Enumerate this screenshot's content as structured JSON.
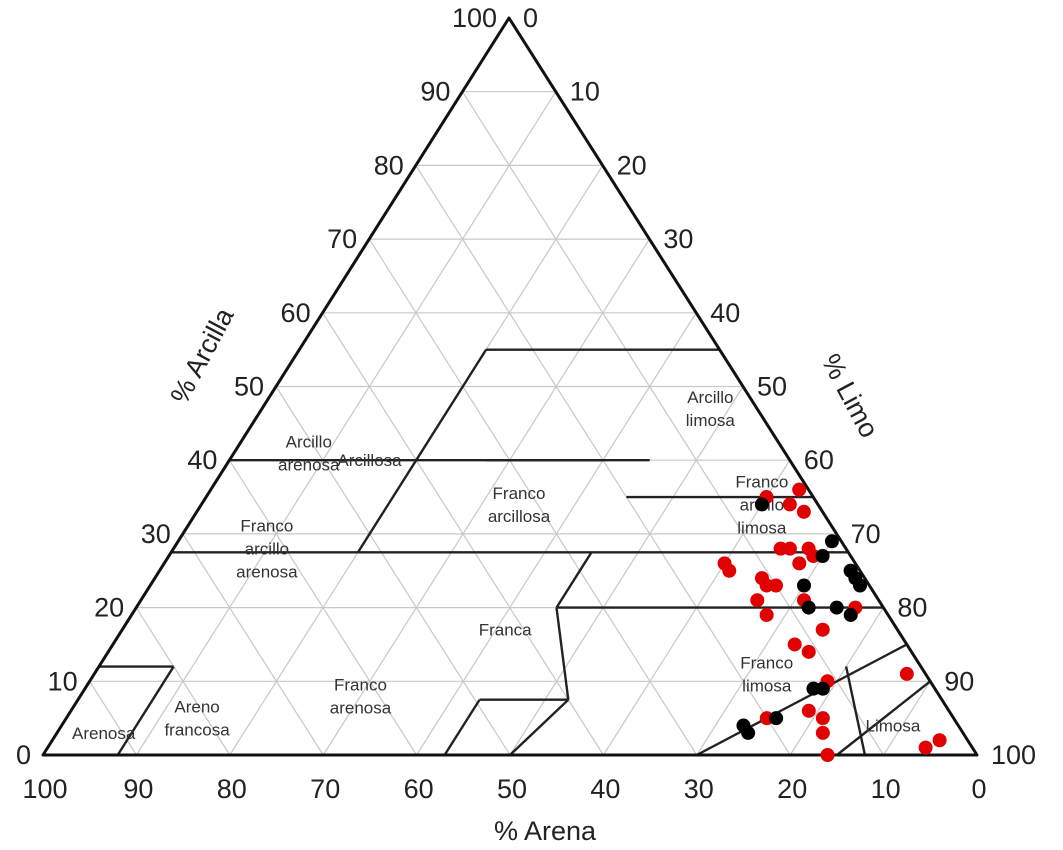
{
  "chart_data": {
    "type": "scatter",
    "subtype": "ternary",
    "axes": {
      "clay": {
        "label": "% Arcilla",
        "ticks": [
          "0",
          "10",
          "20",
          "30",
          "40",
          "50",
          "60",
          "70",
          "80",
          "90",
          "100"
        ]
      },
      "silt": {
        "label": "% Limo",
        "ticks": [
          "0",
          "10",
          "20",
          "30",
          "40",
          "50",
          "60",
          "70",
          "80",
          "90",
          "100"
        ]
      },
      "sand": {
        "label": "% Arena",
        "ticks": [
          "100",
          "90",
          "80",
          "70",
          "60",
          "50",
          "40",
          "30",
          "20",
          "10",
          "0"
        ]
      }
    },
    "grid": true,
    "regions": [
      {
        "lines": [
          "Arcillosa"
        ],
        "at": [
          45,
          15
        ]
      },
      {
        "lines": [
          "Arcillo",
          "limosa"
        ],
        "at": [
          5,
          48
        ]
      },
      {
        "lines": [
          "Arcillo",
          "arenosa"
        ],
        "at": [
          51,
          8
        ]
      },
      {
        "lines": [
          "Franco",
          "arcillosa"
        ],
        "at": [
          32,
          34
        ]
      },
      {
        "lines": [
          "Franco",
          "arcillo",
          "limosa"
        ],
        "at": [
          6,
          60
        ]
      },
      {
        "lines": [
          "Franco",
          "arcillo",
          "arenosa"
        ],
        "at": [
          62,
          10
        ]
      },
      {
        "lines": [
          "Franca"
        ],
        "at": [
          42,
          41
        ]
      },
      {
        "lines": [
          "Franco",
          "limosa"
        ],
        "at": [
          17,
          72
        ]
      },
      {
        "lines": [
          "Franco",
          "arenosa"
        ],
        "at": [
          62,
          30
        ]
      },
      {
        "lines": [
          "Limosa"
        ],
        "at": [
          7,
          89
        ]
      },
      {
        "lines": [
          "Areno",
          "francosa"
        ],
        "at": [
          81,
          14
        ]
      },
      {
        "lines": [
          "Arenosa"
        ],
        "at": [
          92,
          5
        ]
      }
    ],
    "boundaries": [
      [
        [
          55,
          45,
          0
        ],
        [
          55,
          20,
          25
        ]
      ],
      [
        [
          55,
          20,
          25
        ],
        [
          40,
          20,
          40
        ]
      ],
      [
        [
          40,
          27.5,
          32.5
        ],
        [
          40,
          45,
          15
        ]
      ],
      [
        [
          40,
          40,
          20
        ],
        [
          40,
          0,
          60
        ]
      ],
      [
        [
          40,
          0,
          60
        ],
        [
          27.5,
          0,
          72.5
        ]
      ],
      [
        [
          27.5,
          0,
          72.5
        ],
        [
          27.5,
          20,
          52.5
        ]
      ],
      [
        [
          27.5,
          20,
          52.5
        ],
        [
          27.5,
          45,
          27.5
        ]
      ],
      [
        [
          27.5,
          45,
          27.5
        ],
        [
          20,
          45,
          35
        ]
      ],
      [
        [
          40,
          20,
          40
        ],
        [
          27.5,
          20,
          52.5
        ]
      ],
      [
        [
          35,
          45,
          20
        ],
        [
          35,
          65,
          0
        ]
      ],
      [
        [
          20,
          80,
          0
        ],
        [
          20,
          45,
          35
        ]
      ],
      [
        [
          20,
          45,
          35
        ],
        [
          7.5,
          52.5,
          40
        ]
      ],
      [
        [
          7.5,
          52.5,
          40
        ],
        [
          0,
          50,
          50
        ]
      ],
      [
        [
          7.5,
          52.5,
          40
        ],
        [
          7.5,
          43,
          49.5
        ]
      ],
      [
        [
          7.5,
          43,
          49.5
        ],
        [
          5,
          43,
          52
        ]
      ],
      [
        [
          5,
          43,
          52
        ],
        [
          0,
          43,
          57
        ]
      ],
      [
        [
          27.5,
          72.5,
          0
        ],
        [
          27.5,
          45,
          27.5
        ]
      ],
      [
        [
          27.5,
          0,
          72.5
        ],
        [
          12,
          0,
          88
        ]
      ],
      [
        [
          12,
          0,
          88
        ],
        [
          12,
          8,
          80
        ]
      ],
      [
        [
          12,
          8,
          80
        ],
        [
          0,
          8,
          92
        ]
      ],
      [
        [
          12,
          80,
          8
        ],
        [
          0,
          88,
          12
        ]
      ],
      [
        [
          10,
          90,
          0
        ],
        [
          0,
          85,
          15
        ]
      ],
      [
        [
          15,
          0,
          85
        ],
        [
          0,
          0,
          100
        ]
      ],
      [
        [
          15,
          85,
          0
        ],
        [
          0,
          70,
          30
        ]
      ]
    ],
    "series": [
      {
        "color": "#e00000",
        "points": [
          [
            3,
            95
          ],
          [
            5,
            94
          ],
          [
            16,
            84
          ],
          [
            14,
            81
          ],
          [
            15,
            82
          ],
          [
            15,
            79
          ],
          [
            11,
            79
          ],
          [
            12,
            79
          ],
          [
            11,
            75
          ],
          [
            8,
            75
          ],
          [
            12,
            73
          ],
          [
            8,
            71
          ],
          [
            13,
            68
          ],
          [
            13,
            66
          ],
          [
            11,
            66
          ],
          [
            11,
            65
          ],
          [
            20,
            75
          ],
          [
            10,
            67
          ],
          [
            7,
            65
          ],
          [
            3,
            63
          ],
          [
            2,
            65
          ],
          [
            1,
            63
          ],
          [
            14,
            60
          ],
          [
            14,
            61
          ],
          [
            5,
            60
          ],
          [
            6,
            66
          ],
          [
            4,
            69
          ],
          [
            6,
            68
          ],
          [
            3,
            77
          ],
          [
            2,
            87
          ],
          [
            1,
            74
          ],
          [
            4,
            68
          ]
        ]
      },
      {
        "color": "#000000",
        "points": [
          [
            23,
            74
          ],
          [
            23,
            73
          ],
          [
            19,
            76
          ],
          [
            13,
            78
          ],
          [
            12,
            79
          ],
          [
            8,
            72
          ],
          [
            5,
            75
          ],
          [
            4,
            77
          ],
          [
            1,
            76
          ],
          [
            1,
            75
          ],
          [
            1,
            74
          ],
          [
            1,
            70
          ],
          [
            7,
            70
          ],
          [
            6,
            60
          ],
          [
            3,
            70
          ]
        ]
      }
    ]
  }
}
